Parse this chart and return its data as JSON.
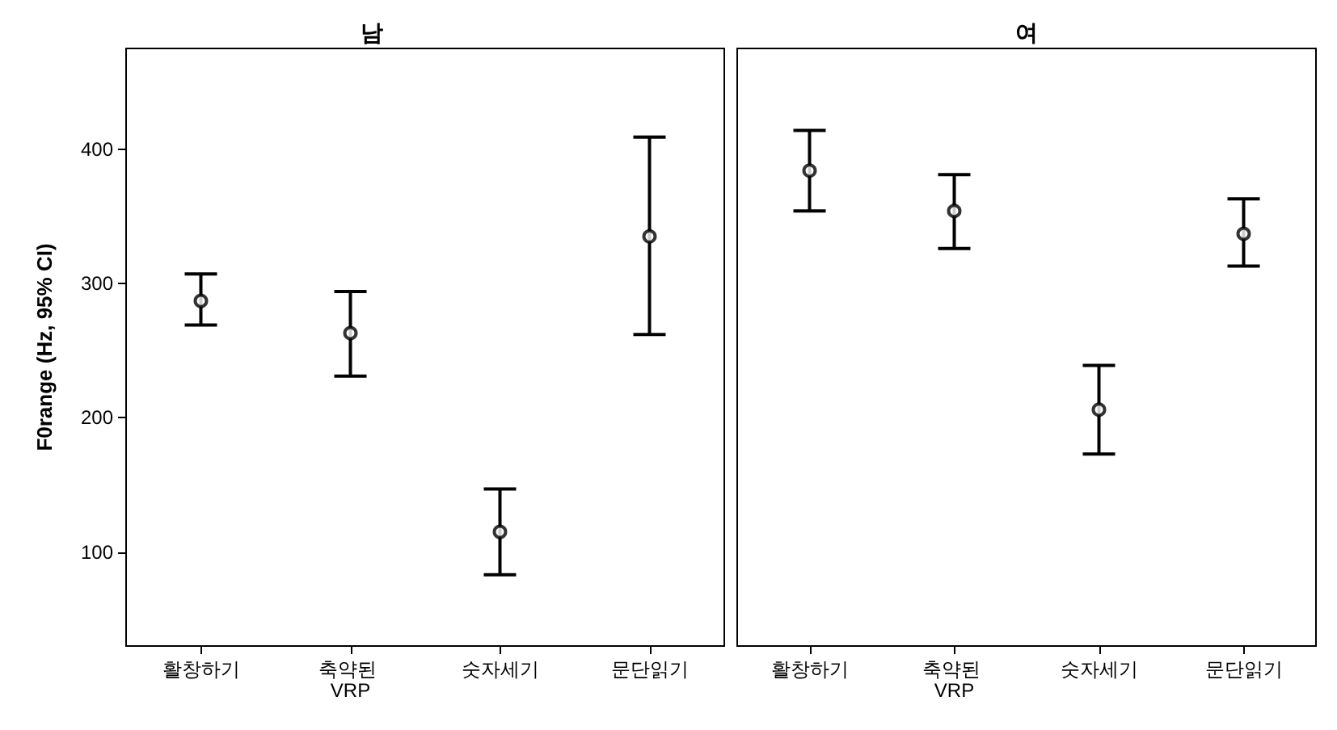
{
  "chart_data": [
    {
      "type": "scatter",
      "title": "남",
      "ylabel": "F0range (Hz, 95% CI)",
      "categories": [
        "활창하기",
        "축약된 VRP",
        "숫자세기",
        "문단읽기"
      ],
      "series": [
        {
          "color": "#000000",
          "values": [
            287,
            263,
            115,
            335
          ],
          "errors": [
            [
              269,
              307
            ],
            [
              231,
              294
            ],
            [
              83,
              147
            ],
            [
              262,
              409
            ]
          ]
        }
      ],
      "ylim": [
        30,
        475
      ],
      "yticks": [
        100,
        200,
        300,
        400
      ],
      "grid": false,
      "marker": "circle"
    },
    {
      "type": "scatter",
      "title": "여",
      "categories": [
        "활창하기",
        "축약된 VRP",
        "숫자세기",
        "문단읽기"
      ],
      "series": [
        {
          "color": "#000000",
          "values": [
            384,
            354,
            206,
            337
          ],
          "errors": [
            [
              354,
              414
            ],
            [
              326,
              381
            ],
            [
              173,
              239
            ],
            [
              313,
              363
            ]
          ]
        }
      ],
      "ylim": [
        30,
        475
      ],
      "yticks": [
        100,
        200,
        300,
        400
      ],
      "grid": false,
      "marker": "circle",
      "tick_labels": "x"
    }
  ]
}
